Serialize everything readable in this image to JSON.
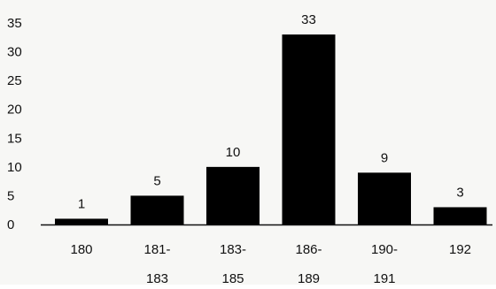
{
  "chart_data": {
    "type": "bar",
    "title": "",
    "xlabel": "",
    "ylabel": "",
    "categories": [
      [
        "180"
      ],
      [
        "181-",
        "183"
      ],
      [
        "183-",
        "185"
      ],
      [
        "186-",
        "189"
      ],
      [
        "190-",
        "191"
      ],
      [
        "192"
      ]
    ],
    "values": [
      1,
      5,
      10,
      33,
      9,
      3
    ],
    "data_labels": [
      "1",
      "5",
      "10",
      "33",
      "9",
      "3"
    ],
    "ylim": [
      0,
      35
    ],
    "yticks": [
      "0",
      "5",
      "10",
      "15",
      "20",
      "25",
      "30",
      "35"
    ],
    "ytick_values": [
      0,
      5,
      10,
      15,
      20,
      25,
      30,
      35
    ],
    "grid": false,
    "legend": "none",
    "colors": {
      "bar": "#000000",
      "axis": "#111111",
      "background": "#f7f7f5"
    }
  }
}
